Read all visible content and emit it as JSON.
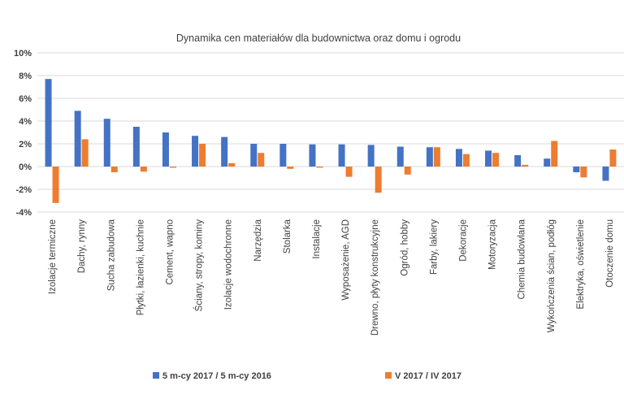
{
  "chart_data": {
    "type": "bar",
    "title": "Dynamika cen materiałów dla budownictwa oraz domu i ogrodu",
    "xlabel": "",
    "ylabel": "",
    "ylim": [
      -4,
      10
    ],
    "yticks": [
      10,
      8,
      6,
      4,
      2,
      0,
      -2,
      -4
    ],
    "ytick_labels": [
      "10%",
      "8%",
      "6%",
      "4%",
      "2%",
      "0%",
      "-2%",
      "-4%"
    ],
    "grid": true,
    "legend_position": "bottom",
    "categories": [
      "Izolacje termiczne",
      "Dachy, rynny",
      "Sucha zabudowa",
      "Płytki, łazienki, kuchnie",
      "Cement, wapno",
      "Ściany, stropy, kominy",
      "Izolacje wodochronne",
      "Narzędzia",
      "Stolarka",
      "Instalacje",
      "Wyposażenie, AGD",
      "Drewno, płyty konstrukcyjne",
      "Ogród, hobby",
      "Farby, lakiery",
      "Dekoracje",
      "Motoryzacja",
      "Chemia budowlana",
      "Wykończenia ścian, podłóg",
      "Elektryka, oświetlenie",
      "Otoczenie domu"
    ],
    "series": [
      {
        "name": "5 m-cy 2017 / 5 m-cy 2016",
        "color": "#4472c4",
        "values": [
          7.7,
          4.9,
          4.2,
          3.5,
          3.0,
          2.7,
          2.6,
          2.0,
          2.0,
          1.95,
          1.95,
          1.9,
          1.75,
          1.7,
          1.55,
          1.4,
          1.0,
          0.7,
          -0.5,
          -1.25
        ]
      },
      {
        "name": "V 2017 / IV 2017",
        "color": "#ed7d31",
        "values": [
          -3.2,
          2.4,
          -0.5,
          -0.45,
          -0.1,
          2.0,
          0.3,
          1.2,
          -0.2,
          -0.1,
          -0.9,
          -2.3,
          -0.7,
          1.7,
          1.1,
          1.2,
          0.15,
          2.25,
          -0.95,
          1.5
        ]
      }
    ]
  }
}
